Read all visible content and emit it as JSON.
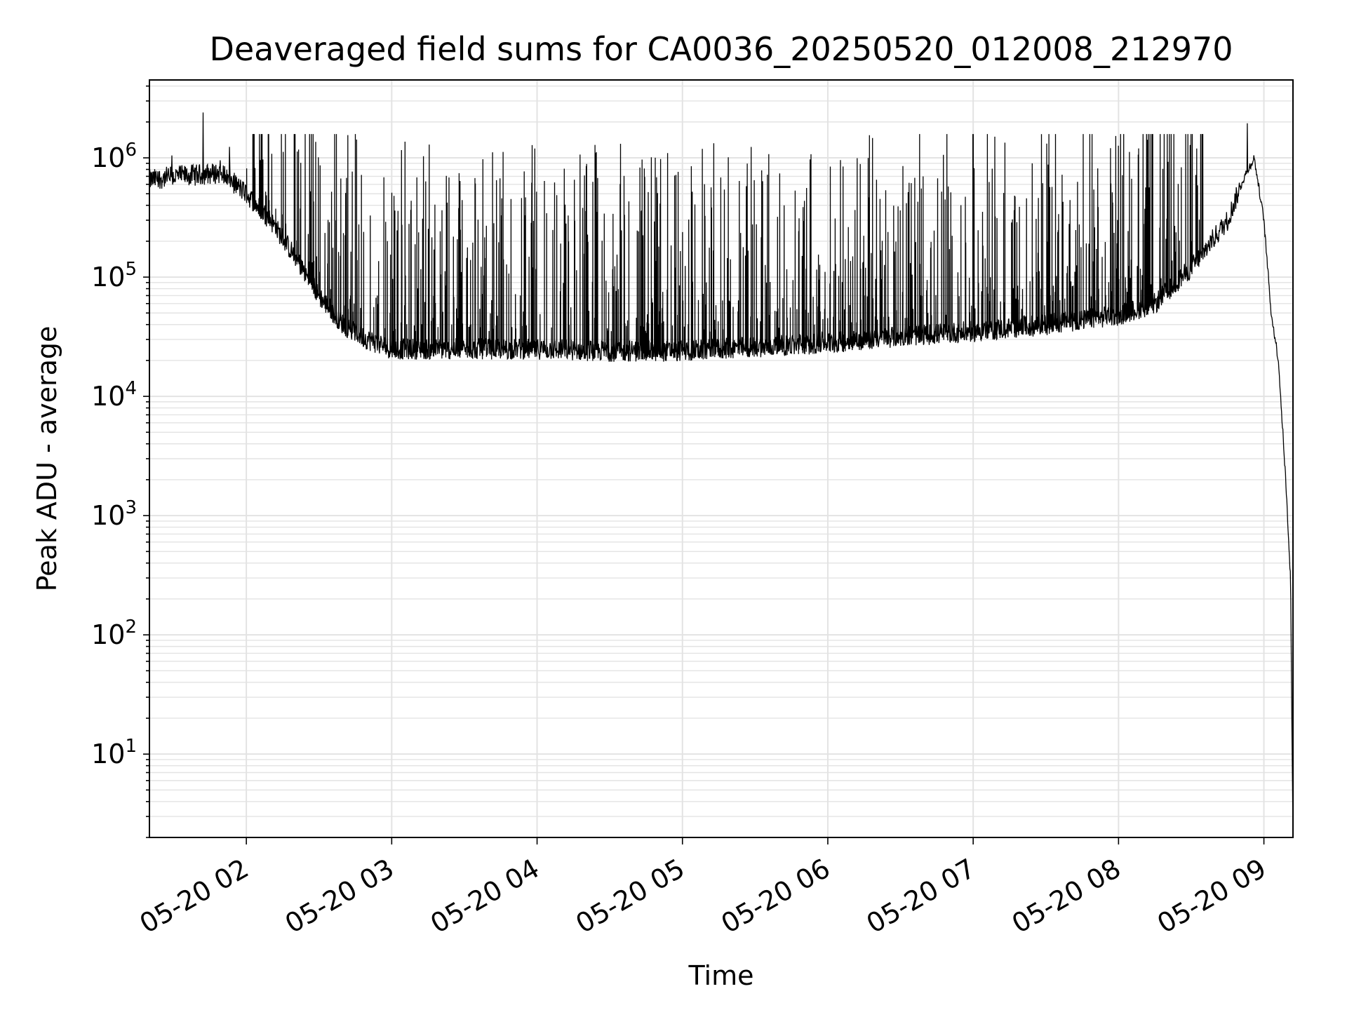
{
  "chart_data": {
    "type": "line",
    "title": "Deaveraged field sums for CA0036_20250520_012008_212970",
    "xlabel": "Time",
    "ylabel": "Peak ADU - average",
    "x_scale": "time",
    "y_scale": "log",
    "xlim": [
      "2025-05-20 01:20",
      "2025-05-20 09:12"
    ],
    "ylim": [
      2,
      4500000
    ],
    "x_ticks": [
      "05-20 02",
      "05-20 03",
      "05-20 04",
      "05-20 05",
      "05-20 06",
      "05-20 07",
      "05-20 08",
      "05-20 09"
    ],
    "x_tick_times": [
      "2025-05-20 02:00",
      "2025-05-20 03:00",
      "2025-05-20 04:00",
      "2025-05-20 05:00",
      "2025-05-20 06:00",
      "2025-05-20 07:00",
      "2025-05-20 08:00",
      "2025-05-20 09:00"
    ],
    "y_ticks": [
      {
        "base": "10",
        "exp": "1",
        "value": 10
      },
      {
        "base": "10",
        "exp": "2",
        "value": 100
      },
      {
        "base": "10",
        "exp": "3",
        "value": 1000
      },
      {
        "base": "10",
        "exp": "4",
        "value": 10000
      },
      {
        "base": "10",
        "exp": "5",
        "value": 100000
      },
      {
        "base": "10",
        "exp": "6",
        "value": 1000000
      }
    ],
    "grid": true,
    "line_color": "#000000",
    "grid_color": "#e3e3e3",
    "series": [
      {
        "x": [
          "2025-05-20 01:20",
          "2025-05-20 01:30",
          "2025-05-20 01:40",
          "2025-05-20 01:50",
          "2025-05-20 02:00",
          "2025-05-20 02:10",
          "2025-05-20 02:20",
          "2025-05-20 02:30",
          "2025-05-20 02:40",
          "2025-05-20 02:50",
          "2025-05-20 03:00",
          "2025-05-20 03:30",
          "2025-05-20 04:00",
          "2025-05-20 04:30",
          "2025-05-20 05:00",
          "2025-05-20 05:30",
          "2025-05-20 06:00",
          "2025-05-20 06:30",
          "2025-05-20 07:00",
          "2025-05-20 07:30",
          "2025-05-20 08:00",
          "2025-05-20 08:15",
          "2025-05-20 08:30",
          "2025-05-20 08:45",
          "2025-05-20 08:52",
          "2025-05-20 08:56",
          "2025-05-20 09:00",
          "2025-05-20 09:03",
          "2025-05-20 09:06",
          "2025-05-20 09:09",
          "2025-05-20 09:11",
          "2025-05-20 09:12"
        ],
        "y": [
          650000,
          700000,
          720000,
          750000,
          500000,
          300000,
          150000,
          70000,
          40000,
          30000,
          25000,
          25000,
          25000,
          24000,
          24000,
          26000,
          28000,
          32000,
          35000,
          40000,
          48000,
          60000,
          120000,
          300000,
          700000,
          1000000,
          300000,
          50000,
          20000,
          2000,
          300,
          2
        ]
      }
    ]
  }
}
